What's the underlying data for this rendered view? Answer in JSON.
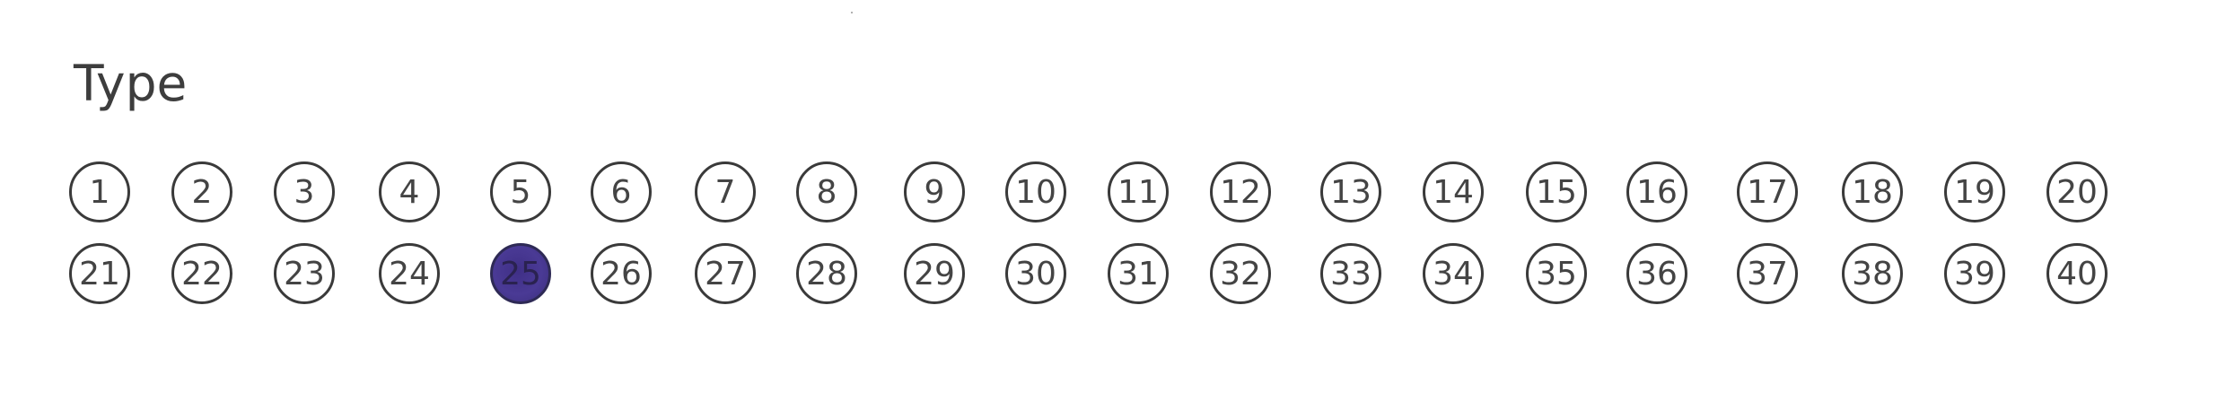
{
  "heading": "Type",
  "rows": [
    [
      "1",
      "2",
      "3",
      "4",
      "5",
      "6",
      "7",
      "8",
      "9",
      "10",
      "11",
      "12",
      "13",
      "14",
      "15",
      "16",
      "17",
      "18",
      "19",
      "20"
    ],
    [
      "21",
      "22",
      "23",
      "24",
      "25",
      "26",
      "27",
      "28",
      "29",
      "30",
      "31",
      "32",
      "33",
      "34",
      "35",
      "36",
      "37",
      "38",
      "39",
      "40"
    ]
  ],
  "selected": "25",
  "colors": {
    "fill": "#4a3a95",
    "outline": "#3a3a3a",
    "text": "#444444"
  }
}
